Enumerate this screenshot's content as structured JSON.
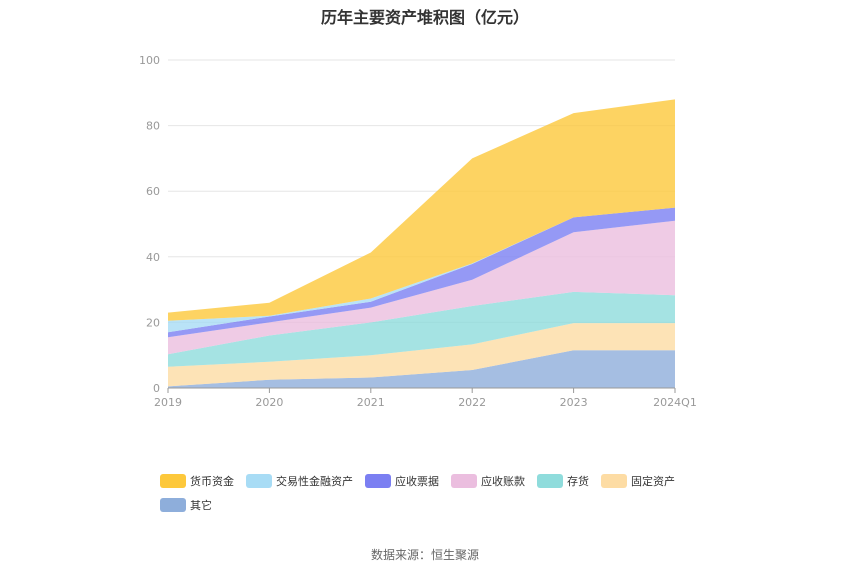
{
  "title": "历年主要资产堆积图（亿元）",
  "source": "数据来源：恒生聚源",
  "chart_data": {
    "type": "area",
    "stacked": true,
    "x": [
      "2019",
      "2020",
      "2021",
      "2022",
      "2023",
      "2024Q1"
    ],
    "ylim": [
      0,
      100
    ],
    "yticks": [
      0,
      20,
      40,
      60,
      80,
      100
    ],
    "grid": true,
    "legend_position": "bottom",
    "series": [
      {
        "name": "其它",
        "color": "#8eaedb",
        "values": [
          0.5,
          2.5,
          3.2,
          5.5,
          11.5,
          11.5
        ]
      },
      {
        "name": "固定资产",
        "color": "#fddca4",
        "values": [
          6.0,
          5.5,
          6.8,
          7.8,
          8.3,
          8.3
        ]
      },
      {
        "name": "存货",
        "color": "#8fdcdc",
        "values": [
          3.8,
          8.0,
          10.0,
          11.7,
          9.5,
          8.5
        ]
      },
      {
        "name": "应收账款",
        "color": "#ebbedf",
        "values": [
          5.2,
          4.0,
          4.5,
          8.0,
          18.2,
          22.7
        ]
      },
      {
        "name": "应收票据",
        "color": "#7b7ff2",
        "values": [
          1.5,
          1.8,
          1.8,
          4.8,
          4.5,
          4.0
        ]
      },
      {
        "name": "交易性金融资产",
        "color": "#a8dcf5",
        "values": [
          3.5,
          0.2,
          1.0,
          0.2,
          0.0,
          0.0
        ]
      },
      {
        "name": "货币资金",
        "color": "#fdc83b",
        "values": [
          2.5,
          4.0,
          14.0,
          32.0,
          31.8,
          33.0
        ]
      }
    ]
  }
}
